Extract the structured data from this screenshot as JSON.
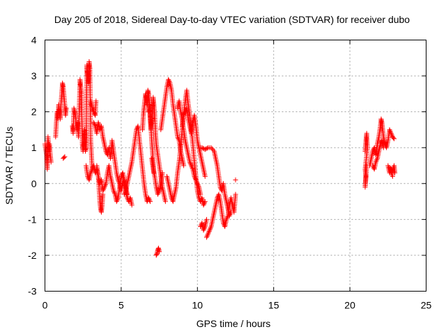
{
  "chart_data": {
    "type": "scatter",
    "title": "Day 205 of 2018, Sidereal Day-to-day VTEC variation (SDTVAR) for receiver dubo",
    "xlabel": "GPS time / hours",
    "ylabel": "SDTVAR / TECUs",
    "xlim": [
      0,
      25
    ],
    "ylim": [
      -3,
      4
    ],
    "xticks": [
      0,
      5,
      10,
      15,
      20,
      25
    ],
    "yticks": [
      -3,
      -2,
      -1,
      0,
      1,
      2,
      3,
      4
    ],
    "grid": true,
    "marker": "plus",
    "color": "#ff0000",
    "segments": [
      [
        [
          0.0,
          1.1
        ],
        [
          0.1,
          0.8
        ],
        [
          0.15,
          0.4
        ],
        [
          0.2,
          1.3
        ],
        [
          0.25,
          0.9
        ],
        [
          0.3,
          1.1
        ],
        [
          0.35,
          0.8
        ],
        [
          0.4,
          0.6
        ]
      ],
      [
        [
          0.7,
          1.3
        ],
        [
          0.75,
          1.7
        ],
        [
          0.8,
          2.0
        ],
        [
          0.85,
          1.8
        ],
        [
          0.9,
          2.2
        ],
        [
          0.95,
          2.0
        ],
        [
          1.0,
          1.8
        ],
        [
          1.05,
          2.2
        ],
        [
          1.1,
          2.5
        ],
        [
          1.15,
          2.8
        ],
        [
          1.2,
          2.7
        ],
        [
          1.3,
          2.2
        ],
        [
          1.35,
          1.9
        ],
        [
          1.4,
          2.1
        ]
      ],
      [
        [
          1.2,
          0.7
        ],
        [
          1.3,
          0.75
        ]
      ],
      [
        [
          1.8,
          1.6
        ],
        [
          1.85,
          1.4
        ],
        [
          1.9,
          2.1
        ],
        [
          2.0,
          1.9
        ],
        [
          2.1,
          1.5
        ],
        [
          2.15,
          1.7
        ],
        [
          2.2,
          1.3
        ],
        [
          2.3,
          2.9
        ],
        [
          2.35,
          2.7
        ],
        [
          2.4,
          2.5
        ],
        [
          2.45,
          1.1
        ],
        [
          2.5,
          0.9
        ],
        [
          2.55,
          1.2
        ],
        [
          2.6,
          1.5
        ],
        [
          2.65,
          0.9
        ],
        [
          2.7,
          1.0
        ],
        [
          2.75,
          3.3
        ],
        [
          2.8,
          3.0
        ],
        [
          2.85,
          2.8
        ],
        [
          2.9,
          3.4
        ],
        [
          2.95,
          3.2
        ],
        [
          3.0,
          1.2
        ],
        [
          3.05,
          0.8
        ],
        [
          3.1,
          0.4
        ]
      ],
      [
        [
          3.0,
          2.3
        ],
        [
          3.1,
          2.1
        ],
        [
          3.2,
          2.0
        ],
        [
          3.3,
          1.9
        ],
        [
          3.35,
          2.3
        ]
      ],
      [
        [
          2.7,
          0.5
        ],
        [
          2.8,
          0.2
        ],
        [
          2.9,
          0.1
        ],
        [
          3.0,
          0.3
        ],
        [
          3.1,
          0.4
        ],
        [
          3.2,
          0.5
        ],
        [
          3.3,
          0.3
        ],
        [
          3.4,
          0.4
        ],
        [
          3.5,
          0.2
        ],
        [
          3.6,
          -0.5
        ],
        [
          3.65,
          -0.7
        ],
        [
          3.7,
          -0.8
        ],
        [
          3.75,
          -0.6
        ],
        [
          3.8,
          -0.3
        ]
      ],
      [
        [
          3.2,
          1.7
        ],
        [
          3.3,
          1.6
        ],
        [
          3.4,
          1.4
        ],
        [
          3.5,
          1.7
        ],
        [
          3.6,
          1.5
        ],
        [
          3.7,
          1.6
        ],
        [
          3.8,
          1.3
        ],
        [
          3.9,
          1.1
        ],
        [
          4.0,
          0.9
        ],
        [
          4.1,
          0.8
        ],
        [
          4.2,
          1.0
        ],
        [
          4.3,
          0.7
        ],
        [
          4.4,
          1.2
        ],
        [
          4.5,
          0.9
        ],
        [
          4.6,
          0.6
        ],
        [
          4.7,
          0.3
        ],
        [
          4.8,
          0.1
        ],
        [
          4.9,
          0.0
        ],
        [
          5.0,
          -0.2
        ],
        [
          5.1,
          0.0
        ],
        [
          5.2,
          0.1
        ],
        [
          5.3,
          -0.1
        ],
        [
          5.4,
          -0.3
        ]
      ],
      [
        [
          3.4,
          0.5
        ],
        [
          3.5,
          0.2
        ],
        [
          3.6,
          0.0
        ],
        [
          3.7,
          0.1
        ],
        [
          3.8,
          -0.2
        ],
        [
          3.9,
          -0.1
        ],
        [
          4.0,
          0.0
        ],
        [
          4.1,
          0.3
        ],
        [
          4.2,
          0.5
        ],
        [
          4.3,
          0.2
        ],
        [
          4.4,
          0.0
        ],
        [
          4.5,
          -0.2
        ],
        [
          4.6,
          -0.3
        ],
        [
          4.7,
          -0.5
        ],
        [
          4.8,
          -0.4
        ],
        [
          4.9,
          -0.1
        ],
        [
          5.0,
          0.2
        ],
        [
          5.1,
          0.3
        ],
        [
          5.2,
          0.1
        ],
        [
          5.3,
          -0.2
        ],
        [
          5.4,
          -0.4
        ],
        [
          5.5,
          -0.5
        ],
        [
          5.6,
          -0.4
        ],
        [
          5.7,
          -0.6
        ]
      ],
      [
        [
          5.2,
          -0.3
        ],
        [
          5.3,
          -0.2
        ],
        [
          5.4,
          0.0
        ],
        [
          5.5,
          0.2
        ],
        [
          5.6,
          0.4
        ],
        [
          5.7,
          0.6
        ],
        [
          5.8,
          0.9
        ],
        [
          5.9,
          1.2
        ],
        [
          6.0,
          1.5
        ],
        [
          6.1,
          1.6
        ],
        [
          6.2,
          1.2
        ],
        [
          6.3,
          0.8
        ],
        [
          6.4,
          0.4
        ],
        [
          6.5,
          0.0
        ],
        [
          6.6,
          -0.3
        ],
        [
          6.7,
          -0.5
        ],
        [
          6.8,
          -0.4
        ],
        [
          6.9,
          -0.5
        ]
      ],
      [
        [
          6.4,
          1.5
        ],
        [
          6.45,
          1.9
        ],
        [
          6.5,
          2.1
        ],
        [
          6.55,
          2.3
        ],
        [
          6.6,
          2.5
        ],
        [
          6.65,
          2.4
        ],
        [
          6.7,
          2.2
        ],
        [
          6.75,
          2.6
        ],
        [
          6.8,
          2.5
        ],
        [
          6.85,
          2.3
        ],
        [
          6.9,
          2.0
        ],
        [
          6.95,
          1.6
        ],
        [
          7.0,
          1.2
        ],
        [
          7.05,
          0.9
        ],
        [
          7.1,
          0.6
        ],
        [
          7.15,
          0.3
        ]
      ],
      [
        [
          6.8,
          2.0
        ],
        [
          6.85,
          2.2
        ],
        [
          6.9,
          1.8
        ],
        [
          6.95,
          1.5
        ],
        [
          7.0,
          1.7
        ],
        [
          7.05,
          2.0
        ],
        [
          7.1,
          2.4
        ],
        [
          7.15,
          2.2
        ],
        [
          7.2,
          1.9
        ],
        [
          7.25,
          1.4
        ],
        [
          7.3,
          1.1
        ],
        [
          7.4,
          0.8
        ],
        [
          7.5,
          0.5
        ],
        [
          7.6,
          0.2
        ],
        [
          7.7,
          -0.1
        ],
        [
          7.8,
          -0.3
        ],
        [
          7.9,
          -0.5
        ]
      ],
      [
        [
          7.0,
          0.7
        ],
        [
          7.1,
          0.4
        ],
        [
          7.2,
          0.2
        ],
        [
          7.3,
          -0.1
        ],
        [
          7.4,
          -0.3
        ],
        [
          7.5,
          -0.2
        ],
        [
          7.6,
          0.0
        ],
        [
          7.7,
          0.3
        ]
      ],
      [
        [
          7.3,
          -2.0
        ],
        [
          7.35,
          -1.95
        ],
        [
          7.4,
          -1.85
        ],
        [
          7.45,
          -1.8
        ],
        [
          7.5,
          -1.9
        ]
      ],
      [
        [
          7.6,
          1.5
        ],
        [
          7.7,
          1.8
        ],
        [
          7.8,
          2.1
        ],
        [
          7.9,
          2.4
        ],
        [
          8.0,
          2.7
        ],
        [
          8.1,
          2.9
        ],
        [
          8.2,
          2.8
        ],
        [
          8.3,
          2.6
        ],
        [
          8.4,
          2.2
        ],
        [
          8.5,
          1.9
        ],
        [
          8.6,
          1.6
        ],
        [
          8.7,
          1.3
        ],
        [
          8.8,
          1.2
        ],
        [
          8.9,
          0.9
        ],
        [
          9.0,
          0.7
        ],
        [
          9.1,
          0.5
        ]
      ],
      [
        [
          8.0,
          0.2
        ],
        [
          8.1,
          0.0
        ],
        [
          8.2,
          -0.2
        ],
        [
          8.3,
          -0.4
        ],
        [
          8.4,
          -0.5
        ],
        [
          8.5,
          -0.3
        ],
        [
          8.6,
          -0.1
        ],
        [
          8.7,
          0.3
        ],
        [
          8.8,
          0.6
        ],
        [
          8.9,
          1.0
        ],
        [
          9.0,
          1.5
        ],
        [
          9.1,
          1.9
        ],
        [
          9.2,
          2.3
        ],
        [
          9.3,
          2.6
        ],
        [
          9.4,
          2.2
        ],
        [
          9.5,
          1.9
        ],
        [
          9.6,
          1.5
        ],
        [
          9.7,
          1.1
        ],
        [
          9.8,
          0.6
        ],
        [
          9.9,
          0.2
        ],
        [
          10.0,
          -0.2
        ],
        [
          10.1,
          -0.4
        ],
        [
          10.2,
          -0.5
        ],
        [
          10.3,
          -0.4
        ],
        [
          10.4,
          -0.6
        ],
        [
          10.5,
          -0.5
        ]
      ],
      [
        [
          9.0,
          1.6
        ],
        [
          9.1,
          1.9
        ],
        [
          9.2,
          2.0
        ],
        [
          9.3,
          2.1
        ],
        [
          9.4,
          1.8
        ],
        [
          9.5,
          1.6
        ],
        [
          9.6,
          1.4
        ],
        [
          9.7,
          1.7
        ],
        [
          9.8,
          1.9
        ],
        [
          9.9,
          1.6
        ],
        [
          10.0,
          1.2
        ],
        [
          10.1,
          1.0
        ],
        [
          10.2,
          0.8
        ],
        [
          10.3,
          0.6
        ],
        [
          10.4,
          0.4
        ],
        [
          10.5,
          0.2
        ]
      ],
      [
        [
          8.7,
          2.1
        ],
        [
          8.8,
          2.3
        ],
        [
          8.9,
          2.0
        ],
        [
          9.0,
          1.8
        ],
        [
          9.1,
          1.5
        ],
        [
          9.2,
          1.2
        ],
        [
          9.3,
          1.0
        ],
        [
          9.4,
          0.8
        ],
        [
          9.5,
          0.6
        ],
        [
          9.6,
          0.5
        ],
        [
          9.7,
          0.4
        ],
        [
          9.8,
          0.2
        ],
        [
          9.9,
          0.1
        ],
        [
          10.0,
          0.0
        ],
        [
          10.1,
          -0.1
        ],
        [
          10.2,
          -0.3
        ]
      ],
      [
        [
          10.1,
          1.0
        ],
        [
          10.3,
          1.0
        ],
        [
          10.5,
          0.95
        ],
        [
          10.7,
          1.0
        ],
        [
          10.9,
          1.0
        ],
        [
          11.1,
          0.9
        ],
        [
          11.2,
          0.7
        ],
        [
          11.3,
          0.5
        ],
        [
          11.4,
          0.2
        ],
        [
          11.5,
          -0.1
        ],
        [
          11.6,
          -0.2
        ],
        [
          11.7,
          0.0
        ],
        [
          11.8,
          -0.3
        ],
        [
          11.9,
          -0.5
        ],
        [
          12.0,
          -0.7
        ],
        [
          12.1,
          -0.9
        ],
        [
          12.2,
          -0.8
        ]
      ],
      [
        [
          10.2,
          -1.2
        ],
        [
          10.3,
          -1.1
        ],
        [
          10.4,
          -1.3
        ],
        [
          10.5,
          -1.2
        ],
        [
          10.6,
          -1.0
        ]
      ],
      [
        [
          10.6,
          -1.5
        ],
        [
          10.7,
          -1.4
        ],
        [
          10.8,
          -1.3
        ],
        [
          10.9,
          -1.2
        ],
        [
          11.0,
          -1.0
        ],
        [
          11.1,
          -0.8
        ],
        [
          11.2,
          -0.6
        ],
        [
          11.3,
          -0.4
        ],
        [
          11.4,
          -0.3
        ],
        [
          11.5,
          -0.5
        ],
        [
          11.6,
          -0.8
        ],
        [
          11.7,
          -1.1
        ],
        [
          11.8,
          -1.2
        ],
        [
          11.9,
          -1.0
        ],
        [
          12.0,
          -0.9
        ],
        [
          12.1,
          -0.6
        ],
        [
          12.2,
          -0.4
        ],
        [
          12.3,
          -0.6
        ],
        [
          12.4,
          -0.8
        ],
        [
          12.5,
          -0.3
        ]
      ],
      [
        [
          12.5,
          0.1
        ]
      ],
      [
        [
          21.0,
          0.9
        ],
        [
          21.05,
          1.2
        ],
        [
          21.1,
          1.4
        ],
        [
          21.15,
          1.0
        ],
        [
          21.0,
          0.4
        ],
        [
          21.05,
          0.2
        ],
        [
          21.0,
          -0.1
        ],
        [
          21.1,
          0.5
        ]
      ],
      [
        [
          21.3,
          0.5
        ],
        [
          21.4,
          0.7
        ],
        [
          21.5,
          0.9
        ],
        [
          21.6,
          1.0
        ],
        [
          21.7,
          0.8
        ],
        [
          21.8,
          1.1
        ],
        [
          21.9,
          1.3
        ],
        [
          22.0,
          1.6
        ],
        [
          22.05,
          1.8
        ],
        [
          22.1,
          1.7
        ],
        [
          22.15,
          1.5
        ],
        [
          22.2,
          1.3
        ],
        [
          22.3,
          1.1
        ],
        [
          22.4,
          1.0
        ],
        [
          22.5,
          1.2
        ],
        [
          22.6,
          1.5
        ],
        [
          22.7,
          1.4
        ],
        [
          22.8,
          1.3
        ],
        [
          22.9,
          1.25
        ]
      ],
      [
        [
          21.5,
          0.5
        ],
        [
          21.6,
          0.4
        ],
        [
          21.7,
          0.6
        ],
        [
          21.8,
          0.7
        ],
        [
          21.9,
          0.9
        ],
        [
          22.0,
          1.1
        ],
        [
          22.1,
          1.2
        ],
        [
          22.2,
          1.0
        ]
      ],
      [
        [
          22.5,
          0.5
        ],
        [
          22.6,
          0.3
        ],
        [
          22.7,
          0.4
        ],
        [
          22.8,
          0.35
        ],
        [
          22.9,
          0.5
        ],
        [
          22.95,
          0.3
        ],
        [
          22.6,
          0.45
        ],
        [
          22.8,
          0.2
        ]
      ]
    ]
  }
}
